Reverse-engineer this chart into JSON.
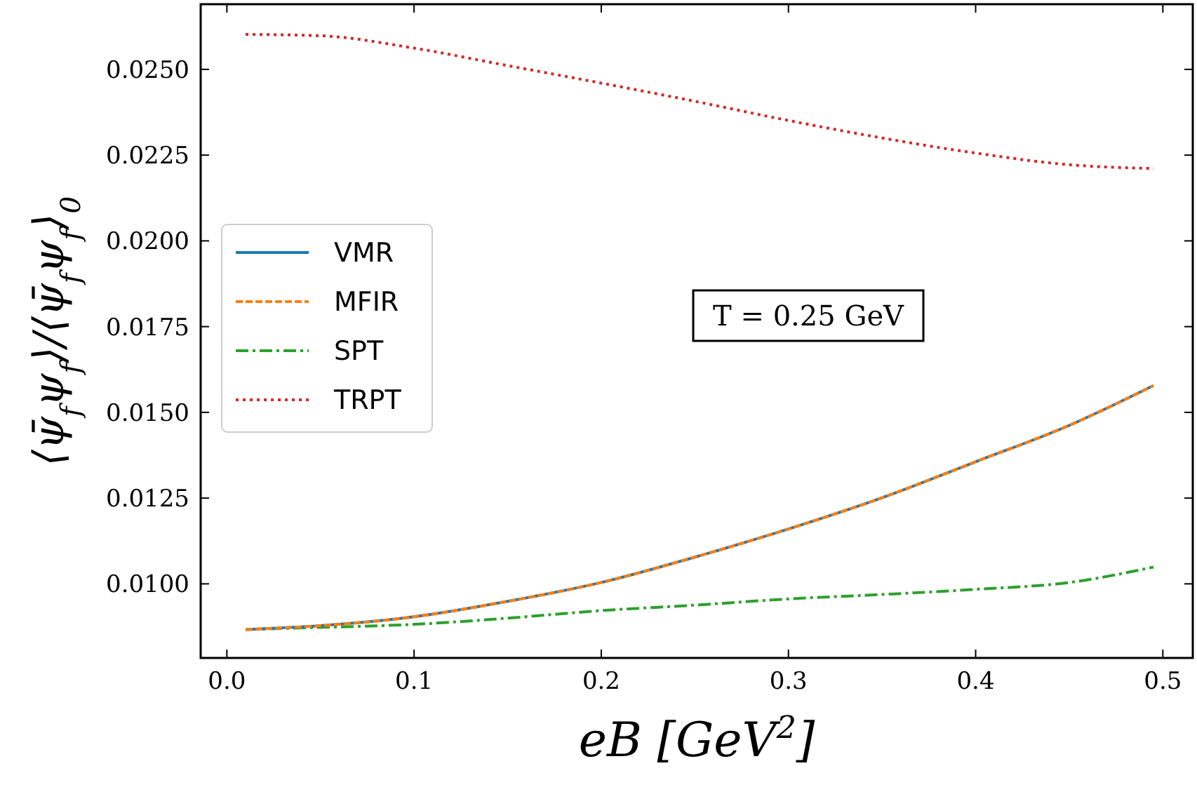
{
  "chart_data": {
    "type": "line",
    "xlabel": "eB [GeV$^{2}$]",
    "ylabel": "⟨ψ̄$_{f}$ψ$_{f}$⟩/⟨ψ̄$_{f}$ψ$_{f}$⟩$_{0}$",
    "x": [
      0.01,
      0.05,
      0.1,
      0.15,
      0.2,
      0.25,
      0.3,
      0.35,
      0.4,
      0.45,
      0.495
    ],
    "series": [
      {
        "name": "VMR",
        "color": "#1f77b4",
        "line_style": "solid",
        "values": [
          0.00867,
          0.00878,
          0.00904,
          0.00949,
          0.01004,
          0.01078,
          0.0116,
          0.01251,
          0.01356,
          0.01462,
          0.01578
        ]
      },
      {
        "name": "MFIR",
        "color": "#ff7f0e",
        "line_style": "dashed",
        "values": [
          0.00867,
          0.00878,
          0.00904,
          0.00949,
          0.01004,
          0.01078,
          0.0116,
          0.01251,
          0.01356,
          0.01462,
          0.01578
        ]
      },
      {
        "name": "SPT",
        "color": "#2ca02c",
        "line_style": "dashdot",
        "values": [
          0.00867,
          0.00873,
          0.00882,
          0.009,
          0.00922,
          0.00938,
          0.00956,
          0.00969,
          0.00984,
          0.01004,
          0.01049
        ]
      },
      {
        "name": "TRPT",
        "color": "#d62728",
        "line_style": "dotted",
        "values": [
          0.02602,
          0.02598,
          0.02562,
          0.02511,
          0.0246,
          0.02407,
          0.02351,
          0.023,
          0.02256,
          0.02222,
          0.02211
        ]
      }
    ],
    "xlim": [
      -0.014,
      0.516
    ],
    "ylim": [
      0.00784,
      0.0269
    ],
    "xticks": [
      {
        "value": 0,
        "label": "0.0"
      },
      0.1,
      0.2,
      0.3,
      0.4,
      0.5
    ],
    "yticks": [
      {
        "value": 0.01,
        "label": "0.0100"
      },
      0.0125,
      {
        "value": 0.015,
        "label": "0.0150"
      },
      0.0175,
      {
        "value": 0.02,
        "label": "0.0200"
      },
      0.0225,
      {
        "value": 0.025,
        "label": "0.0250"
      }
    ],
    "annotations": [
      "T = 0.25 GeV"
    ],
    "legend": "left",
    "grid": false,
    "marker": "none"
  }
}
